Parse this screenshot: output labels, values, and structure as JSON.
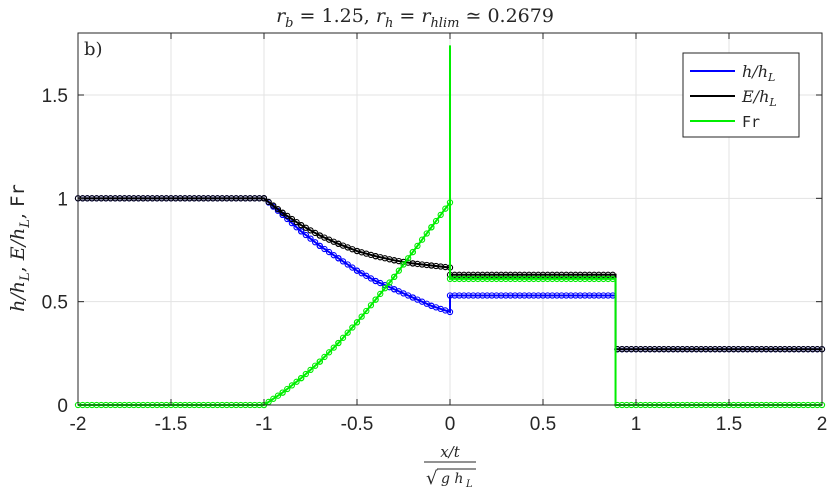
{
  "chart_data": {
    "type": "line",
    "title": "r_b = 1.25,    r_h = r_hlim ≃ 0.2679",
    "panel_label": "b)",
    "xlabel": "x/t / √(g h_L)",
    "ylabel": "h/h_L,   E/h_L,   Fr",
    "xlim": [
      -2,
      2
    ],
    "ylim": [
      0,
      1.8
    ],
    "grid": true,
    "legend_position": "top-right",
    "x_ticks": [
      "-2",
      "-1.5",
      "-1",
      "-0.5",
      "0",
      "0.5",
      "1",
      "1.5",
      "2"
    ],
    "y_ticks": [
      "0",
      "0.5",
      "1",
      "1.5"
    ],
    "series": [
      {
        "name": "h/h_L",
        "color": "#0000ff",
        "x": [
          -2,
          -1.0,
          -0.9,
          -0.8,
          -0.7,
          -0.6,
          -0.5,
          -0.4,
          -0.3,
          -0.2,
          -0.1,
          0,
          0,
          0.89,
          0.89,
          2
        ],
        "y": [
          1.0,
          1.0,
          0.92,
          0.84,
          0.77,
          0.71,
          0.65,
          0.6,
          0.56,
          0.52,
          0.48,
          0.45,
          0.53,
          0.53,
          0.27,
          0.27
        ]
      },
      {
        "name": "E/h_L",
        "color": "#000000",
        "x": [
          -2,
          -1.0,
          -0.9,
          -0.8,
          -0.7,
          -0.6,
          -0.5,
          -0.4,
          -0.3,
          -0.2,
          -0.1,
          0,
          0,
          0.89,
          0.89,
          2
        ],
        "y": [
          1.0,
          1.0,
          0.93,
          0.87,
          0.82,
          0.78,
          0.745,
          0.72,
          0.7,
          0.685,
          0.675,
          0.665,
          0.63,
          0.63,
          0.27,
          0.27
        ]
      },
      {
        "name": "Fr",
        "color": "#00ee00",
        "x": [
          -2,
          -1.0,
          -0.9,
          -0.8,
          -0.7,
          -0.6,
          -0.5,
          -0.4,
          -0.3,
          -0.2,
          -0.1,
          0,
          0,
          0,
          0.89,
          0.89,
          2
        ],
        "y": [
          0,
          0,
          0.06,
          0.13,
          0.21,
          0.3,
          0.4,
          0.51,
          0.62,
          0.74,
          0.86,
          0.98,
          1.74,
          0.61,
          0.61,
          0,
          0
        ]
      }
    ]
  }
}
